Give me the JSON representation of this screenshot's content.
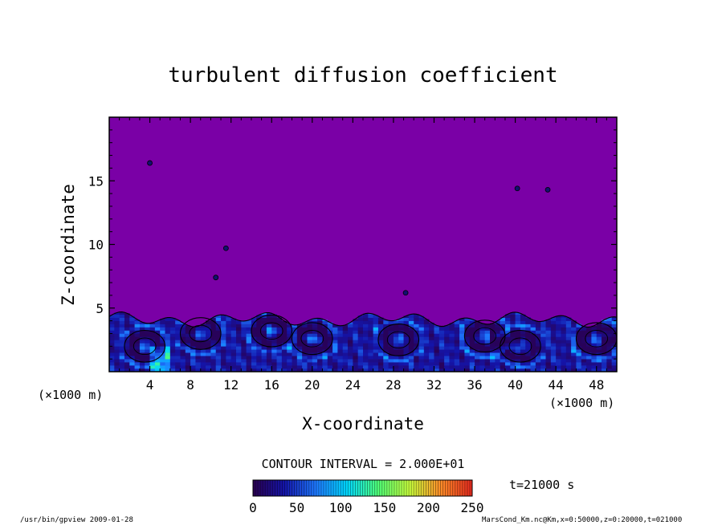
{
  "chart_data": {
    "type": "heatmap",
    "title": "turbulent diffusion coefficient",
    "xlabel": "X-coordinate",
    "ylabel": "Z-coordinate",
    "x_unit": "(×1000 m)",
    "y_unit": "(×1000 m)",
    "xlim": [
      0,
      50
    ],
    "ylim": [
      0,
      20
    ],
    "x_ticks": [
      4,
      8,
      12,
      16,
      20,
      24,
      28,
      32,
      36,
      40,
      44,
      48
    ],
    "y_ticks": [
      5,
      10,
      15
    ],
    "contour_interval_text": "CONTOUR INTERVAL = 2.000E+01",
    "time_text": "t=21000 s",
    "colorbar": {
      "range": [
        0,
        250
      ],
      "ticks": [
        0,
        50,
        100,
        150,
        200,
        250
      ],
      "colors": [
        "#2a0050",
        "#1414a8",
        "#1e78ff",
        "#00d8ff",
        "#50ff78",
        "#c8ff3c",
        "#ff8c28",
        "#e6281e"
      ]
    },
    "background_color": "#7a00a6",
    "field_summary": "Field near 0 above z≈4.5 km; turbulent convective eddies with values ~20–100 confined to the lowest ~4.5 km across the domain, peaks ~120+ near x≈5 km.",
    "footer_left": "/usr/bin/gpview   2009-01-28",
    "footer_right": "MarsCond_Km.nc@Km,x=0:50000,z=0:20000,t=021000"
  }
}
